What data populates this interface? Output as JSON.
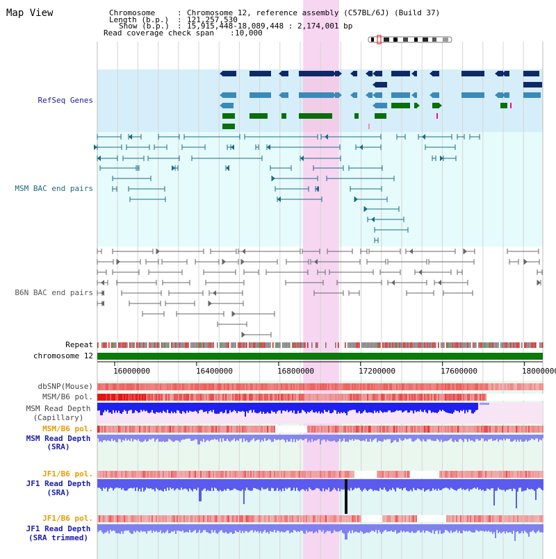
{
  "title": "Map View",
  "header": {
    "chromosome_key": "Chromosome",
    "chromosome_val": "Chromosome 12, reference assembly (C57BL/6J) (Build 37)",
    "length_key": "Length (b.p.)",
    "length_val": "121,257,530",
    "show_key": "Show (b.p.)",
    "show_val": "15,915,448-18,089,448 : 2,174,001 bp",
    "span_key": "Read coverage check span",
    "span_val": "10,000"
  },
  "tracks": {
    "refseq": {
      "label": "RefSeq Genes",
      "color": "#1a1a99"
    },
    "msm_bac": {
      "label": "MSM BAC end pairs",
      "color": "#1a6a7a"
    },
    "b6n_bac": {
      "label": "B6N BAC end pairs",
      "color": "#555555"
    },
    "repeat": {
      "label": "Repeat"
    },
    "chromosome": {
      "label": "chromosome 12",
      "color": "#0a7a0a"
    },
    "dbsnp": {
      "label": "dbSNP(Mouse)"
    },
    "msm_b6_pol": {
      "label": "MSM/B6 pol."
    },
    "msm_depth_cap": {
      "label_line1": "MSM Read Depth",
      "label_line2": "(Capillary)"
    },
    "msm_b6_pol2": {
      "label": "MSM/B6 pol.",
      "color": "#e89a00"
    },
    "msm_depth_sra": {
      "label_line1": "MSM Read Depth",
      "label_line2": "(SRA)",
      "color": "#1a1aaa"
    },
    "jf1_b6_pol": {
      "label": "JF1/B6 pol.",
      "color": "#e89a00"
    },
    "jf1_depth_sra": {
      "label_line1": "JF1 Read Depth",
      "label_line2": "(SRA)",
      "color": "#1a1aaa"
    },
    "jf1_b6_pol2": {
      "label": "JF1/B6 pol.",
      "color": "#e89a00"
    },
    "jf1_depth_trim": {
      "label_line1": "JF1 Read Depth",
      "label_line2": "(SRA trimmed)",
      "color": "#1a1aaa"
    }
  },
  "axis": {
    "start": 15915448,
    "end": 18089448,
    "ticks": [
      "16000000",
      "16400000",
      "16800000",
      "17200000",
      "17600000",
      "18000000"
    ],
    "tick_values": [
      16000000,
      16400000,
      16800000,
      17200000,
      17600000,
      18000000
    ]
  },
  "highlight": {
    "start": 16920000,
    "end": 17095000
  },
  "colors": {
    "refseq_bg": "#d6eef9",
    "bac_bg": "#e6fbfb",
    "highlight": "#f7d6f2",
    "gene_dark": "#0e2a66",
    "gene_mid": "#3a8ab8",
    "gene_green": "#0a6e0a",
    "msm_bac_line": "#1a6a86",
    "b6n_bac_line": "#666666"
  }
}
